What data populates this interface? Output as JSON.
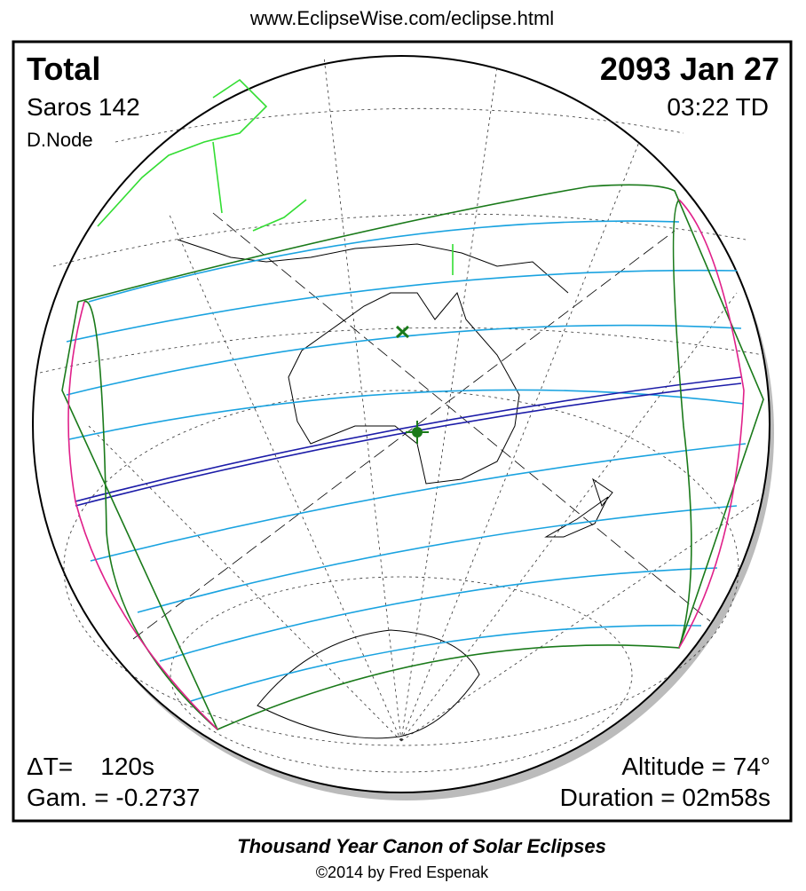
{
  "header": {
    "url": "www.EclipseWise.com/eclipse.html"
  },
  "panel": {
    "type": "Total",
    "saros": "Saros 142",
    "node": "D.Node",
    "date": "2093 Jan 27",
    "time": "03:22 TD",
    "delta_t": "ΔT=    120s",
    "gamma": "Gam. = -0.2737",
    "altitude": "Altitude = 74°",
    "duration": "Duration = 02m58s"
  },
  "footer": {
    "title": "Thousand Year Canon of Solar Eclipses",
    "copyright": "©2014 by Fred Espenak"
  }
}
